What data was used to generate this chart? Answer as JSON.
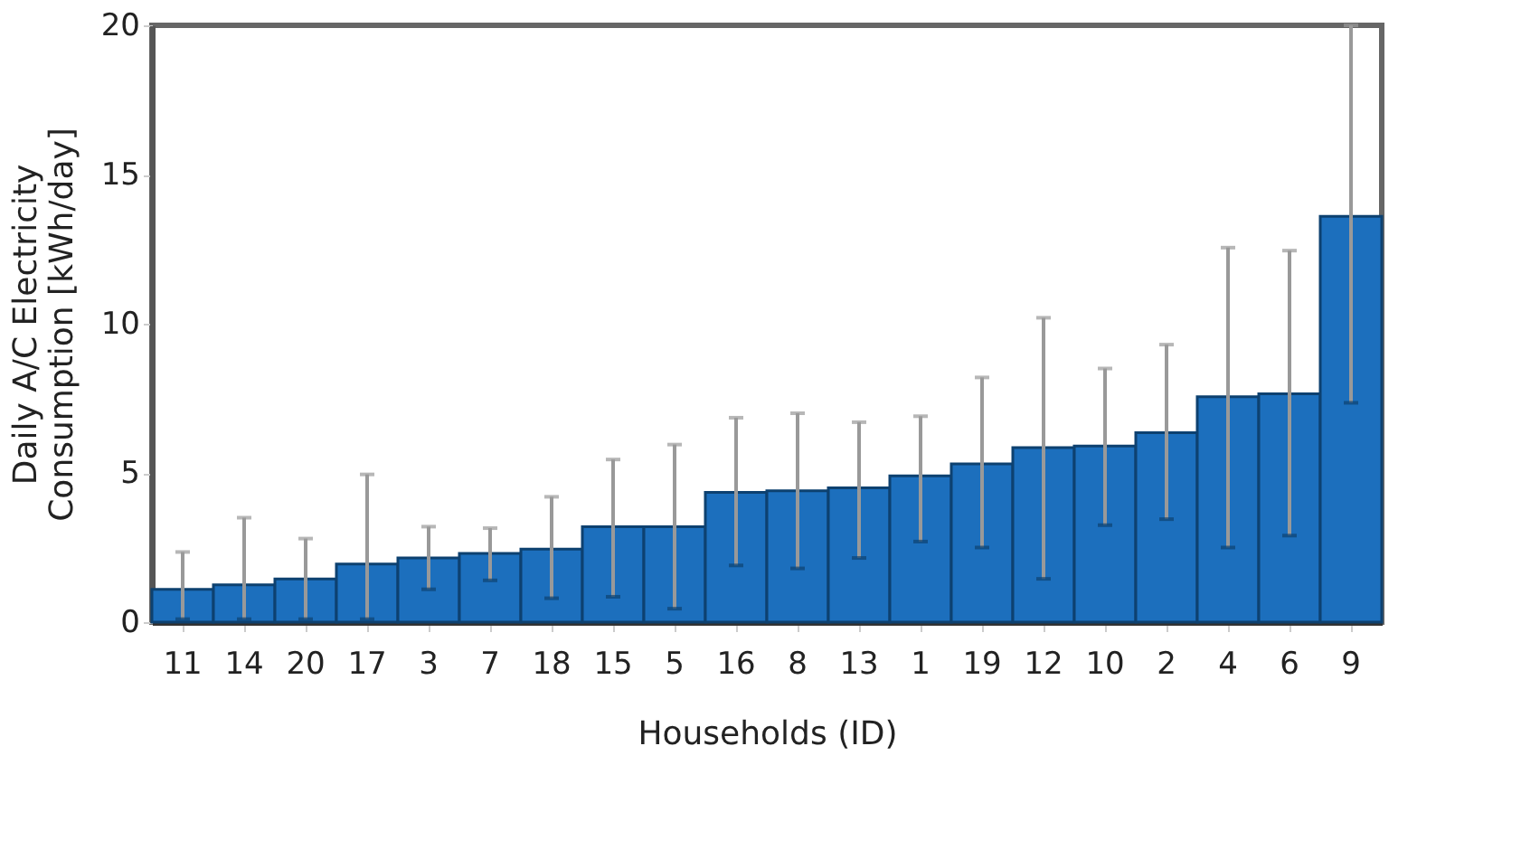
{
  "chart_data": {
    "type": "bar",
    "xlabel": "Households (ID)",
    "ylabel": "Daily A/C Electricity Consumption [kWh/day]",
    "categories": [
      "11",
      "14",
      "20",
      "17",
      "3",
      "7",
      "18",
      "15",
      "5",
      "16",
      "8",
      "13",
      "1",
      "19",
      "12",
      "10",
      "2",
      "4",
      "6",
      "9"
    ],
    "values": [
      1.1,
      1.25,
      1.45,
      1.95,
      2.15,
      2.3,
      2.45,
      3.2,
      3.2,
      4.35,
      4.4,
      4.5,
      4.9,
      5.3,
      5.85,
      5.9,
      6.35,
      7.55,
      7.65,
      13.6
    ],
    "errors": [
      [
        0.1,
        2.35
      ],
      [
        0.1,
        3.5
      ],
      [
        0.1,
        2.8
      ],
      [
        0.1,
        4.95
      ],
      [
        1.1,
        3.2
      ],
      [
        1.4,
        3.15
      ],
      [
        0.8,
        4.2
      ],
      [
        0.85,
        5.45
      ],
      [
        0.45,
        5.95
      ],
      [
        1.9,
        6.85
      ],
      [
        1.8,
        7.0
      ],
      [
        2.15,
        6.7
      ],
      [
        2.7,
        6.9
      ],
      [
        2.5,
        8.2
      ],
      [
        1.45,
        10.2
      ],
      [
        3.25,
        8.5
      ],
      [
        3.45,
        9.3
      ],
      [
        2.5,
        12.55
      ],
      [
        2.9,
        12.45
      ],
      [
        7.35,
        20
      ]
    ],
    "color": "#1c6fbd",
    "ylim": [
      0,
      20
    ],
    "yticks": [
      0,
      5,
      10,
      15,
      20
    ],
    "grid": false
  }
}
